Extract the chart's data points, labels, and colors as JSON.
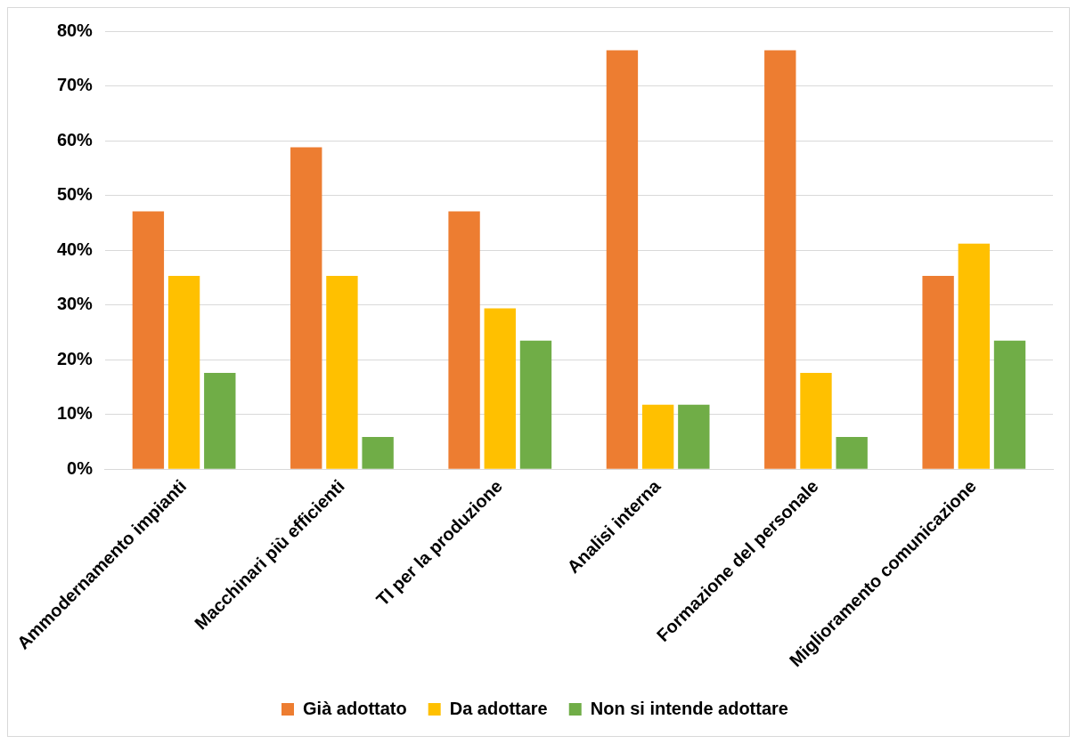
{
  "chart_data": {
    "type": "bar",
    "categories": [
      "Ammodernamento impianti",
      "Macchinari più efficienti",
      "TI per la produzione",
      "Analisi interna",
      "Formazione del personale",
      "Miglioramento comunicazione"
    ],
    "series": [
      {
        "name": "Già adottato",
        "color": "#ed7d31",
        "values": [
          47.1,
          58.8,
          47.1,
          76.5,
          76.5,
          35.3
        ]
      },
      {
        "name": "Da adottare",
        "color": "#ffc000",
        "values": [
          35.3,
          35.3,
          29.4,
          11.8,
          17.6,
          41.2
        ]
      },
      {
        "name": "Non si intende adottare",
        "color": "#70ad47",
        "values": [
          17.6,
          5.9,
          23.5,
          11.8,
          5.9,
          23.5
        ]
      }
    ],
    "ylim": [
      0,
      80
    ],
    "yticks": [
      {
        "value": 0,
        "label": "0%"
      },
      {
        "value": 10,
        "label": "10%"
      },
      {
        "value": 20,
        "label": "20%"
      },
      {
        "value": 30,
        "label": "30%"
      },
      {
        "value": 40,
        "label": "40%"
      },
      {
        "value": 50,
        "label": "50%"
      },
      {
        "value": 60,
        "label": "60%"
      },
      {
        "value": 70,
        "label": "70%"
      },
      {
        "value": 80,
        "label": "80%"
      }
    ],
    "grid": "y",
    "legend": "bottom"
  }
}
